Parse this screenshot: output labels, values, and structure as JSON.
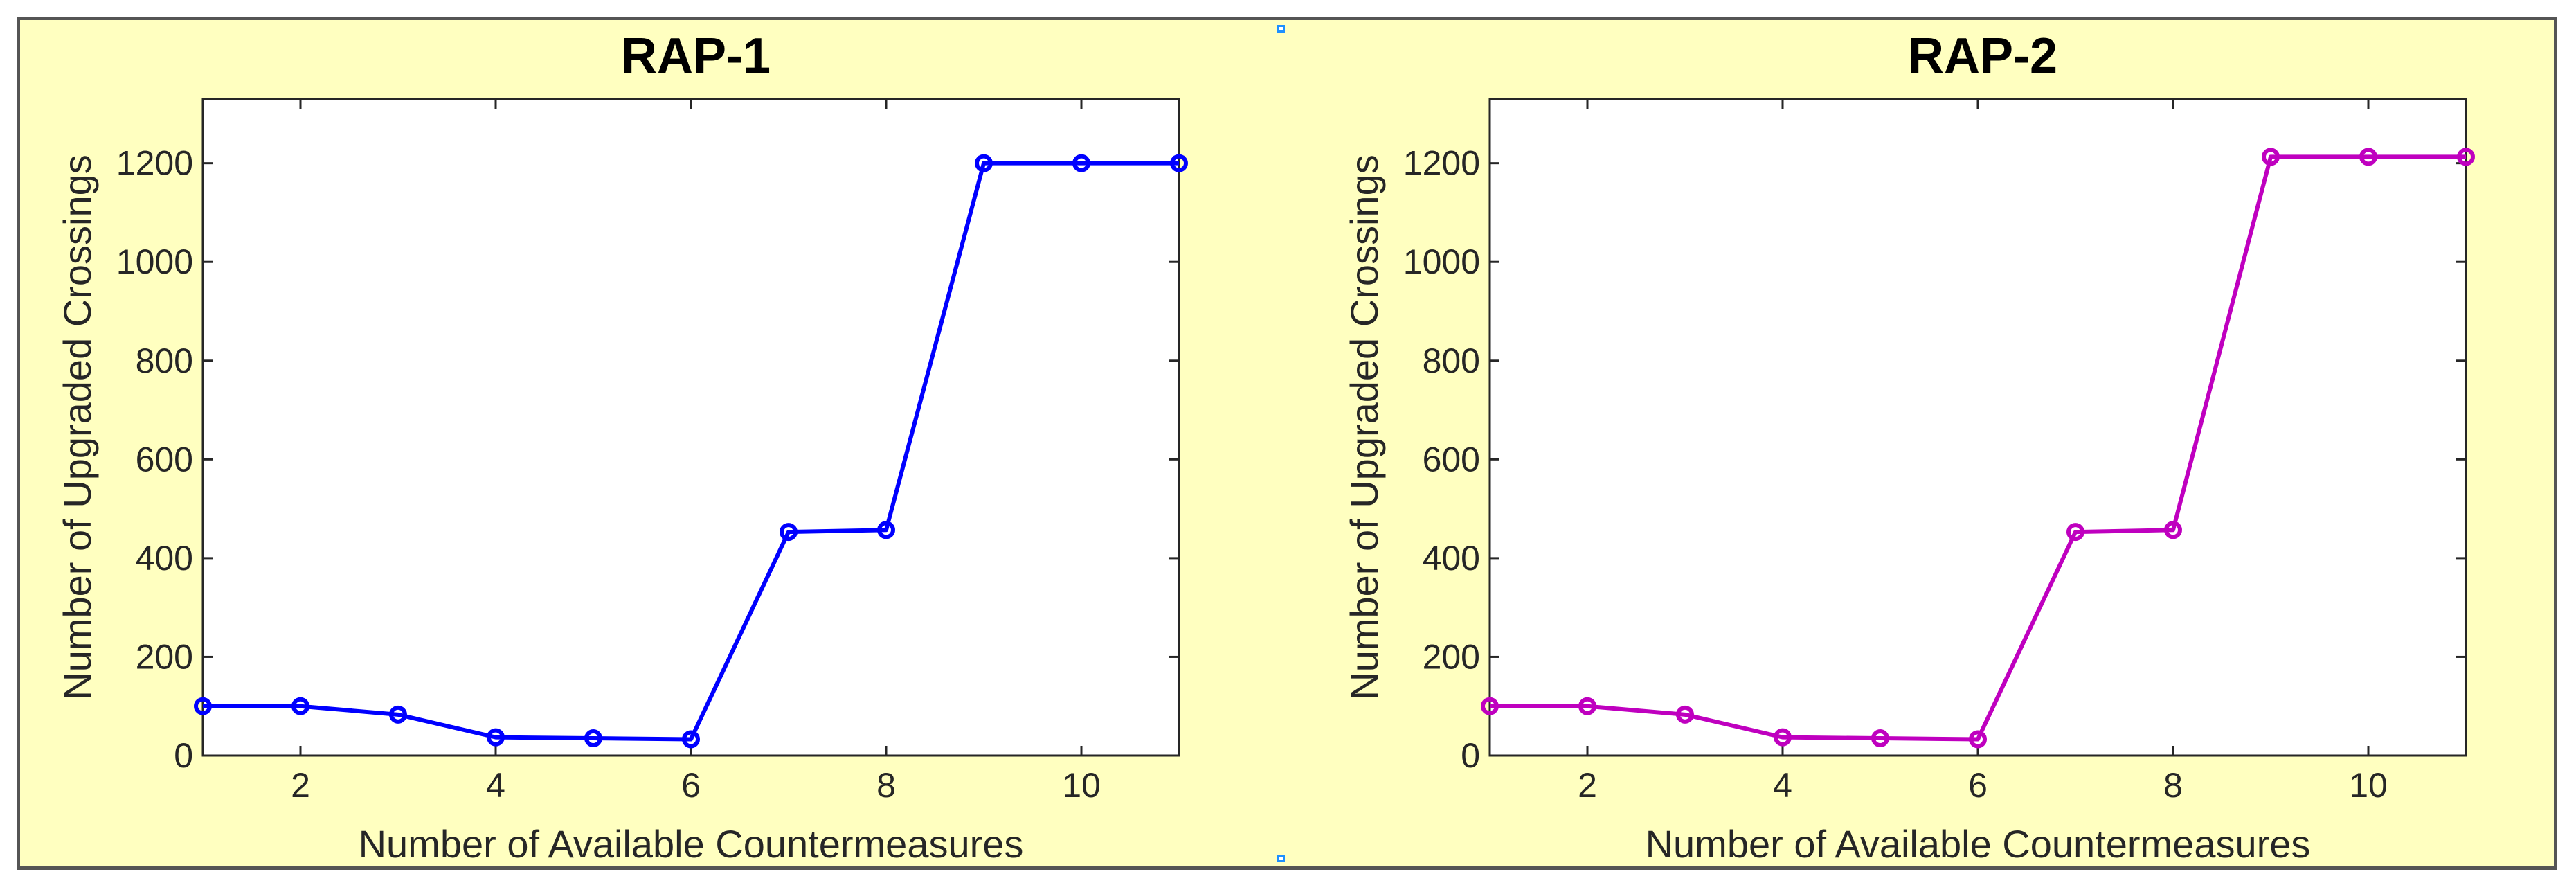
{
  "chart_data": [
    {
      "type": "line",
      "title": "RAP-1",
      "xlabel": "Number of Available Countermeasures",
      "ylabel": "Number of Upgraded Crossings",
      "xlim": [
        1,
        11
      ],
      "ylim": [
        0,
        1330
      ],
      "xticks": [
        2,
        4,
        6,
        8,
        10
      ],
      "yticks": [
        0,
        200,
        400,
        600,
        800,
        1000,
        1200
      ],
      "grid": false,
      "series": [
        {
          "x": [
            1,
            2,
            3,
            4,
            5,
            6,
            7,
            8,
            9,
            10,
            11
          ],
          "y": [
            100,
            100,
            83,
            37,
            35,
            33,
            453,
            457,
            1200,
            1200,
            1200
          ],
          "color": "#0000ff",
          "marker": "circle"
        }
      ]
    },
    {
      "type": "line",
      "title": "RAP-2",
      "xlabel": "Number of Available Countermeasures",
      "ylabel": "Number of Upgraded Crossings",
      "xlim": [
        1,
        11
      ],
      "ylim": [
        0,
        1330
      ],
      "xticks": [
        2,
        4,
        6,
        8,
        10
      ],
      "yticks": [
        0,
        200,
        400,
        600,
        800,
        1000,
        1200
      ],
      "grid": false,
      "series": [
        {
          "x": [
            1,
            2,
            3,
            4,
            5,
            6,
            7,
            8,
            9,
            10,
            11
          ],
          "y": [
            100,
            100,
            83,
            37,
            35,
            33,
            453,
            457,
            1213,
            1213,
            1213
          ],
          "color": "#bf00bf",
          "marker": "circle"
        }
      ]
    }
  ]
}
